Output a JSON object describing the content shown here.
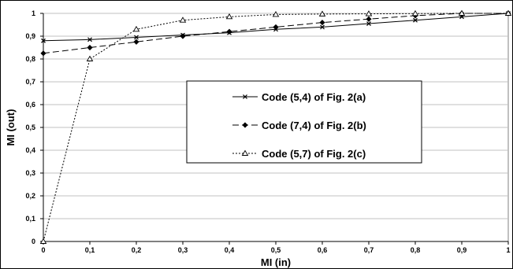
{
  "chart_data": {
    "type": "line",
    "title": "",
    "xlabel": "MI (in)",
    "ylabel": "MI (out)",
    "xlim": [
      0,
      1
    ],
    "ylim": [
      0,
      1
    ],
    "x_ticks": [
      "0",
      "0,1",
      "0,2",
      "0,3",
      "0,4",
      "0,5",
      "0,6",
      "0,7",
      "0,8",
      "0,9",
      "1"
    ],
    "y_ticks": [
      "0",
      "0,1",
      "0,2",
      "0,3",
      "0,4",
      "0,5",
      "0,6",
      "0,7",
      "0,8",
      "0,9",
      "1"
    ],
    "grid": "horizontal",
    "legend_position": "center-right",
    "series": [
      {
        "name": "Code (5,4) of Fig. 2(a)",
        "line_style": "solid",
        "marker": "x",
        "x": [
          0,
          0.1,
          0.2,
          0.3,
          0.4,
          0.5,
          0.6,
          0.7,
          0.8,
          0.9,
          1.0
        ],
        "y": [
          0.88,
          0.885,
          0.895,
          0.905,
          0.915,
          0.93,
          0.94,
          0.955,
          0.97,
          0.985,
          1.0
        ]
      },
      {
        "name": "Code (7,4) of Fig. 2(b)",
        "line_style": "dashed",
        "marker": "diamond",
        "x": [
          0,
          0.1,
          0.2,
          0.3,
          0.4,
          0.5,
          0.6,
          0.7,
          0.8,
          0.9,
          1.0
        ],
        "y": [
          0.825,
          0.85,
          0.875,
          0.9,
          0.92,
          0.94,
          0.96,
          0.975,
          0.99,
          1.0,
          1.0
        ]
      },
      {
        "name": "Code (5,7) of Fig. 2(c)",
        "line_style": "dotted",
        "marker": "triangle",
        "x": [
          0,
          0.1,
          0.2,
          0.3,
          0.4,
          0.5,
          0.6,
          0.7,
          0.8,
          0.9,
          1.0
        ],
        "y": [
          0.0,
          0.8,
          0.93,
          0.97,
          0.985,
          0.995,
          0.997,
          0.998,
          0.999,
          1.0,
          1.0
        ]
      }
    ]
  }
}
